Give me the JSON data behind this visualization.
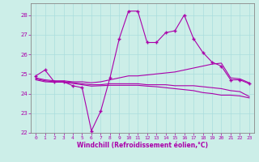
{
  "title": "",
  "xlabel": "Windchill (Refroidissement éolien,°C)",
  "xlim": [
    -0.5,
    23.5
  ],
  "ylim": [
    22,
    28.6
  ],
  "yticks": [
    22,
    23,
    24,
    25,
    26,
    27,
    28
  ],
  "xticks": [
    0,
    1,
    2,
    3,
    4,
    5,
    6,
    7,
    8,
    9,
    10,
    11,
    12,
    13,
    14,
    15,
    16,
    17,
    18,
    19,
    20,
    21,
    22,
    23
  ],
  "bg_color": "#cceee8",
  "line_color": "#aa00aa",
  "grid_color": "#aadddd",
  "lines": [
    {
      "x": [
        0,
        1,
        2,
        3,
        4,
        5,
        6,
        7,
        8,
        9,
        10,
        11,
        12,
        13,
        14,
        15,
        16,
        17,
        18,
        19,
        20,
        21,
        22,
        23
      ],
      "y": [
        24.9,
        25.2,
        24.6,
        24.6,
        24.4,
        24.3,
        22.1,
        23.1,
        24.8,
        26.8,
        28.2,
        28.2,
        26.6,
        26.6,
        27.1,
        27.2,
        28.0,
        26.8,
        26.1,
        25.6,
        25.4,
        24.7,
        24.7,
        24.5
      ],
      "marker": "+"
    },
    {
      "x": [
        0,
        1,
        2,
        3,
        4,
        5,
        6,
        7,
        8,
        9,
        10,
        11,
        12,
        13,
        14,
        15,
        16,
        17,
        18,
        19,
        20,
        21,
        22,
        23
      ],
      "y": [
        24.8,
        24.7,
        24.65,
        24.65,
        24.6,
        24.6,
        24.55,
        24.6,
        24.7,
        24.8,
        24.9,
        24.9,
        24.95,
        25.0,
        25.05,
        25.1,
        25.2,
        25.3,
        25.4,
        25.5,
        25.55,
        24.8,
        24.75,
        24.55
      ],
      "marker": null
    },
    {
      "x": [
        0,
        1,
        2,
        3,
        4,
        5,
        6,
        7,
        8,
        9,
        10,
        11,
        12,
        13,
        14,
        15,
        16,
        17,
        18,
        19,
        20,
        21,
        22,
        23
      ],
      "y": [
        24.75,
        24.65,
        24.6,
        24.6,
        24.55,
        24.5,
        24.45,
        24.45,
        24.5,
        24.5,
        24.5,
        24.5,
        24.45,
        24.45,
        24.45,
        24.4,
        24.4,
        24.4,
        24.35,
        24.3,
        24.25,
        24.15,
        24.1,
        23.85
      ],
      "marker": null
    },
    {
      "x": [
        0,
        1,
        2,
        3,
        4,
        5,
        6,
        7,
        8,
        9,
        10,
        11,
        12,
        13,
        14,
        15,
        16,
        17,
        18,
        19,
        20,
        21,
        22,
        23
      ],
      "y": [
        24.7,
        24.6,
        24.58,
        24.58,
        24.52,
        24.45,
        24.38,
        24.4,
        24.42,
        24.42,
        24.42,
        24.42,
        24.38,
        24.35,
        24.3,
        24.25,
        24.2,
        24.15,
        24.05,
        24.0,
        23.92,
        23.92,
        23.88,
        23.78
      ],
      "marker": null
    }
  ]
}
